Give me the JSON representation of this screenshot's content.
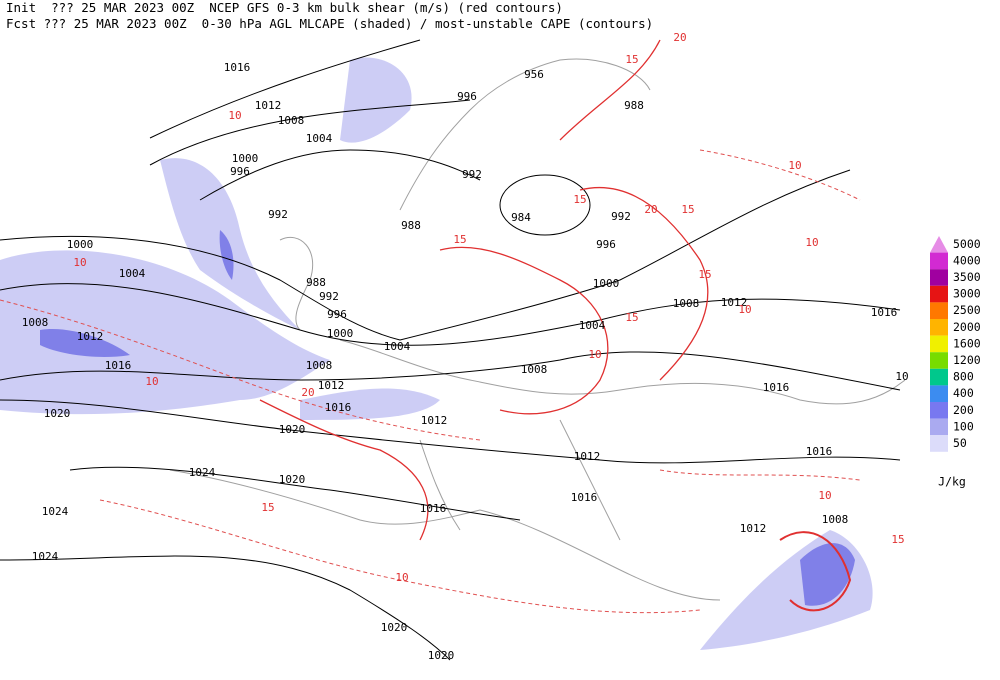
{
  "header": {
    "lines": [
      "Init  ??? 25 MAR 2023 00Z  NCEP GFS 0-3 km bulk shear (m/s) (red contours)",
      "Fcst ??? 25 MAR 2023 00Z  0-30 hPa AGL MLCAPE (shaded) / most-unstable CAPE (contours)"
    ]
  },
  "isobar_labels": [
    "1016",
    "1012",
    "1008",
    "1004",
    "1000",
    "996",
    "992",
    "988",
    "992",
    "996",
    "956",
    "988",
    "984",
    "992",
    "996",
    "1000",
    "1004",
    "1008",
    "1012",
    "1016",
    "1000",
    "1004",
    "988",
    "992",
    "996",
    "1000",
    "1004",
    "1008",
    "1012",
    "1016",
    "1020",
    "1008",
    "1012",
    "1012",
    "1016",
    "1016",
    "1012",
    "1016",
    "1008",
    "1020",
    "1024",
    "1020",
    "1024",
    "1016",
    "1016",
    "1012",
    "1008",
    "1024",
    "1020",
    "1020",
    "10"
  ],
  "shear_labels": [
    "20",
    "15",
    "10",
    "10",
    "15",
    "20",
    "15",
    "10",
    "10",
    "15",
    "10",
    "15",
    "20",
    "10",
    "15",
    "10",
    "15",
    "10",
    "15",
    "10"
  ],
  "legend": {
    "items": [
      {
        "label": "5000",
        "color": "#e68ce6"
      },
      {
        "label": "4000",
        "color": "#d22ad2"
      },
      {
        "label": "3500",
        "color": "#a000a0"
      },
      {
        "label": "3000",
        "color": "#e61414"
      },
      {
        "label": "2500",
        "color": "#ff7800"
      },
      {
        "label": "2000",
        "color": "#ffb400"
      },
      {
        "label": "1600",
        "color": "#f0f000"
      },
      {
        "label": "1200",
        "color": "#78dc00"
      },
      {
        "label": "800",
        "color": "#00c88c"
      },
      {
        "label": "400",
        "color": "#3c8cf0"
      },
      {
        "label": "200",
        "color": "#7878f0"
      },
      {
        "label": "100",
        "color": "#aaaaf0"
      },
      {
        "label": "50",
        "color": "#dcdcfa"
      }
    ],
    "unit": "J/kg"
  }
}
